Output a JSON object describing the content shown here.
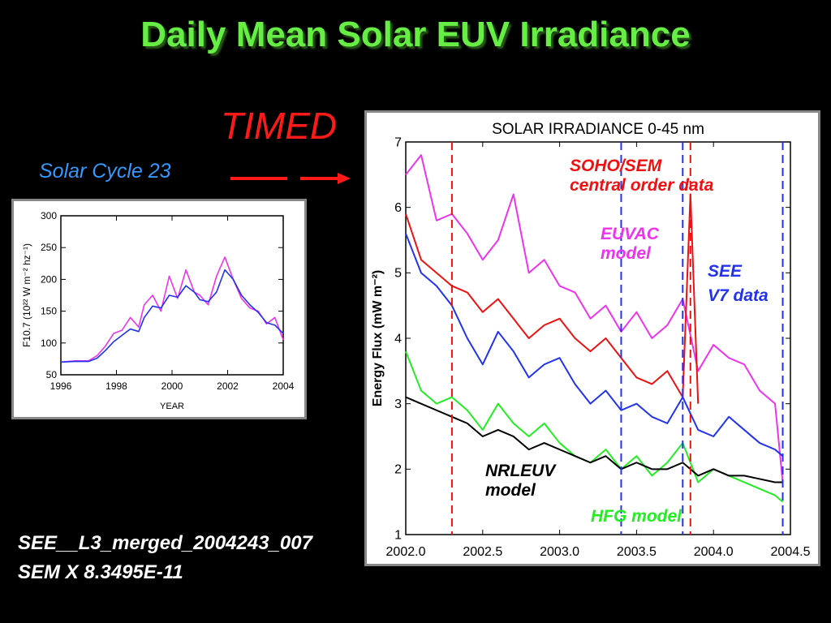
{
  "slide": {
    "title": "Daily Mean Solar EUV Irradiance",
    "timed_label": "TIMED",
    "cycle_label": "Solar Cycle 23",
    "file_label": "SEE__L3_merged_2004243_007",
    "scale_label": "SEM X 8.3495E-11"
  },
  "colors": {
    "title": "#66ee44",
    "timed": "#ff1a1a",
    "cycle": "#3399ff",
    "see": "#2233ee",
    "sem": "#ee1111",
    "euvac": "#ee33ee",
    "hfg": "#22ee22",
    "nrleuv": "#000000"
  },
  "chart_data": [
    {
      "type": "line",
      "title": "",
      "xlabel": "YEAR",
      "ylabel": "F10.7 (10²² W m⁻² hz⁻¹)",
      "xlim": [
        1996,
        2004
      ],
      "ylim": [
        50,
        300
      ],
      "xticks": [
        "1996",
        "1998",
        "2000",
        "2002",
        "2004"
      ],
      "yticks": [
        "50",
        "100",
        "150",
        "200",
        "250",
        "300"
      ],
      "series": [
        {
          "color": "#ee33ee",
          "x": [
            1996.0,
            1996.5,
            1997.0,
            1997.3,
            1997.6,
            1997.9,
            1998.2,
            1998.5,
            1998.8,
            1999.0,
            1999.3,
            1999.6,
            1999.9,
            2000.2,
            2000.5,
            2000.8,
            2001.0,
            2001.3,
            2001.6,
            2001.9,
            2002.2,
            2002.5,
            2002.8,
            2003.1,
            2003.4,
            2003.7,
            2004.0
          ],
          "y": [
            70,
            72,
            72,
            80,
            95,
            115,
            120,
            140,
            125,
            160,
            175,
            150,
            205,
            170,
            215,
            180,
            175,
            160,
            205,
            235,
            200,
            170,
            155,
            150,
            130,
            140,
            105
          ]
        },
        {
          "color": "#2233ee",
          "x": [
            1996.0,
            1996.5,
            1997.0,
            1997.3,
            1997.6,
            1997.9,
            1998.2,
            1998.5,
            1998.8,
            1999.0,
            1999.3,
            1999.6,
            1999.9,
            2000.2,
            2000.5,
            2000.8,
            2001.0,
            2001.3,
            2001.6,
            2001.9,
            2002.2,
            2002.5,
            2002.8,
            2003.1,
            2003.4,
            2003.7,
            2004.0
          ],
          "y": [
            70,
            71,
            71,
            76,
            88,
            102,
            112,
            122,
            118,
            140,
            158,
            155,
            175,
            172,
            190,
            180,
            168,
            165,
            180,
            215,
            200,
            175,
            160,
            148,
            132,
            128,
            115
          ]
        }
      ]
    },
    {
      "type": "line",
      "title": "SOLAR IRRADIANCE 0-45 nm",
      "xlabel": "",
      "ylabel": "Energy Flux (mW m⁻²)",
      "xlim": [
        2002.0,
        2004.5
      ],
      "ylim": [
        1,
        7
      ],
      "xticks": [
        "2002.0",
        "2002.5",
        "2003.0",
        "2003.5",
        "2004.0",
        "2004.5"
      ],
      "yticks": [
        "1",
        "2",
        "3",
        "4",
        "5",
        "6",
        "7"
      ],
      "annotations": [
        "SOHO/SEM",
        "central order data",
        "EUVAC",
        "model",
        "SEE",
        "V7 data",
        "NRLEUV",
        "model",
        "HFG model"
      ],
      "series": [
        {
          "color": "#ee33ee",
          "x": [
            2002.0,
            2002.1,
            2002.2,
            2002.3,
            2002.4,
            2002.5,
            2002.6,
            2002.7,
            2002.8,
            2002.9,
            2003.0,
            2003.1,
            2003.2,
            2003.3,
            2003.4,
            2003.5,
            2003.6,
            2003.7,
            2003.8,
            2003.9,
            2004.0,
            2004.1,
            2004.2,
            2004.3,
            2004.4,
            2004.45
          ],
          "y": [
            6.5,
            6.8,
            5.8,
            5.9,
            5.6,
            5.2,
            5.5,
            6.2,
            5.0,
            5.2,
            4.8,
            4.7,
            4.3,
            4.5,
            4.1,
            4.4,
            4.0,
            4.2,
            4.6,
            3.5,
            3.9,
            3.7,
            3.6,
            3.2,
            3.0,
            1.8
          ]
        },
        {
          "color": "#ee1111",
          "x": [
            2002.0,
            2002.1,
            2002.2,
            2002.3,
            2002.4,
            2002.5,
            2002.6,
            2002.7,
            2002.8,
            2002.9,
            2003.0,
            2003.1,
            2003.2,
            2003.3,
            2003.4,
            2003.5,
            2003.6,
            2003.7,
            2003.8,
            2003.85,
            2003.9
          ],
          "y": [
            5.9,
            5.2,
            5.0,
            4.8,
            4.7,
            4.4,
            4.6,
            4.3,
            4.0,
            4.2,
            4.3,
            4.0,
            3.8,
            4.0,
            3.7,
            3.4,
            3.3,
            3.5,
            3.1,
            6.2,
            3.0
          ]
        },
        {
          "color": "#2233ee",
          "x": [
            2002.0,
            2002.1,
            2002.2,
            2002.3,
            2002.4,
            2002.5,
            2002.6,
            2002.7,
            2002.8,
            2002.9,
            2003.0,
            2003.1,
            2003.2,
            2003.3,
            2003.4,
            2003.5,
            2003.6,
            2003.7,
            2003.8,
            2003.9,
            2004.0,
            2004.1,
            2004.2,
            2004.3,
            2004.4,
            2004.45
          ],
          "y": [
            5.6,
            5.0,
            4.8,
            4.5,
            4.0,
            3.6,
            4.1,
            3.8,
            3.4,
            3.6,
            3.7,
            3.3,
            3.0,
            3.2,
            2.9,
            3.0,
            2.8,
            2.7,
            3.1,
            2.6,
            2.5,
            2.8,
            2.6,
            2.4,
            2.3,
            2.2
          ]
        },
        {
          "color": "#22ee22",
          "x": [
            2002.0,
            2002.1,
            2002.2,
            2002.3,
            2002.4,
            2002.5,
            2002.6,
            2002.7,
            2002.8,
            2002.9,
            2003.0,
            2003.1,
            2003.2,
            2003.3,
            2003.4,
            2003.5,
            2003.6,
            2003.7,
            2003.8,
            2003.9,
            2004.0,
            2004.1,
            2004.2,
            2004.3,
            2004.4,
            2004.45
          ],
          "y": [
            3.8,
            3.2,
            3.0,
            3.1,
            2.9,
            2.6,
            3.0,
            2.7,
            2.5,
            2.7,
            2.4,
            2.2,
            2.1,
            2.3,
            2.0,
            2.2,
            1.9,
            2.1,
            2.4,
            1.8,
            2.0,
            1.9,
            1.8,
            1.7,
            1.6,
            1.5
          ]
        },
        {
          "color": "#000000",
          "x": [
            2002.0,
            2002.1,
            2002.2,
            2002.3,
            2002.4,
            2002.5,
            2002.6,
            2002.7,
            2002.8,
            2002.9,
            2003.0,
            2003.1,
            2003.2,
            2003.3,
            2003.4,
            2003.5,
            2003.6,
            2003.7,
            2003.8,
            2003.9,
            2004.0,
            2004.1,
            2004.2,
            2004.3,
            2004.4,
            2004.45
          ],
          "y": [
            3.1,
            3.0,
            2.9,
            2.8,
            2.7,
            2.5,
            2.6,
            2.5,
            2.3,
            2.4,
            2.3,
            2.2,
            2.1,
            2.2,
            2.0,
            2.1,
            2.0,
            2.0,
            2.1,
            1.9,
            2.0,
            1.9,
            1.9,
            1.85,
            1.8,
            1.8
          ]
        }
      ]
    }
  ]
}
